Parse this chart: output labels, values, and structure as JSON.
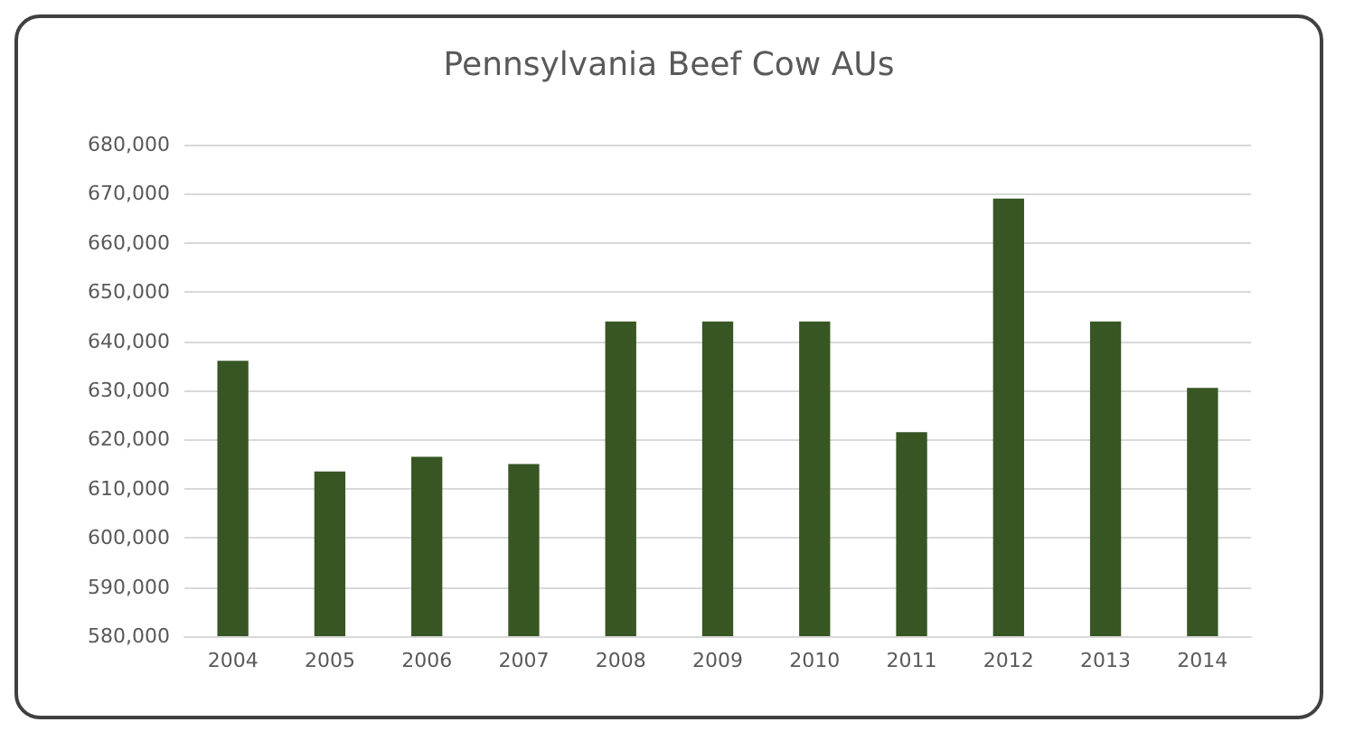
{
  "chart_data": {
    "type": "bar",
    "title": "Pennsylvania Beef Cow AUs",
    "categories": [
      "2004",
      "2005",
      "2006",
      "2007",
      "2008",
      "2009",
      "2010",
      "2011",
      "2012",
      "2013",
      "2014"
    ],
    "values": [
      636000,
      613500,
      616500,
      615000,
      644000,
      644000,
      644000,
      621500,
      669000,
      644000,
      630500
    ],
    "color": "#375623",
    "ylim": [
      580000,
      680000
    ],
    "yticks": [
      {
        "value": 580000,
        "label": "580,000"
      },
      {
        "value": 590000,
        "label": "590,000"
      },
      {
        "value": 600000,
        "label": "600,000"
      },
      {
        "value": 610000,
        "label": "610,000"
      },
      {
        "value": 620000,
        "label": "620,000"
      },
      {
        "value": 630000,
        "label": "630,000"
      },
      {
        "value": 640000,
        "label": "640,000"
      },
      {
        "value": 650000,
        "label": "650,000"
      },
      {
        "value": 660000,
        "label": "660,000"
      },
      {
        "value": 670000,
        "label": "670,000"
      },
      {
        "value": 680000,
        "label": "680,000"
      }
    ],
    "grid": "y"
  }
}
